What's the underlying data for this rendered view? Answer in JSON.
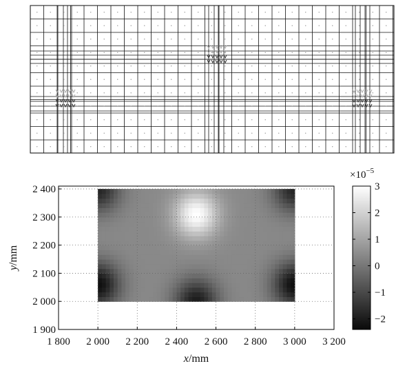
{
  "chart_data": {
    "type": "heatmap",
    "xlabel": {
      "var": "x",
      "unit": "/mm"
    },
    "ylabel": {
      "var": "y",
      "unit": "/mm"
    },
    "xlim": [
      1800,
      3200
    ],
    "ylim": [
      1900,
      2410
    ],
    "data_extent": {
      "x": [
        2000,
        3000
      ],
      "y": [
        2000,
        2400
      ]
    },
    "x_ticks": [
      "1 800",
      "2 000",
      "2 200",
      "2 400",
      "2 600",
      "2 800",
      "3 000",
      "3 200"
    ],
    "x_tick_values": [
      1800,
      2000,
      2200,
      2400,
      2600,
      2800,
      3000,
      3200
    ],
    "y_ticks": [
      "1 900",
      "2 000",
      "2 100",
      "2 200",
      "2 300",
      "2 400"
    ],
    "y_tick_values": [
      1900,
      2000,
      2100,
      2200,
      2300,
      2400
    ],
    "grid": "dotted",
    "colorbar": {
      "multiplier": "×10",
      "exponent": "−5",
      "range": [
        -2.4,
        3.0
      ],
      "ticks": [
        "3",
        "2",
        "1",
        "0",
        "−1",
        "−2"
      ],
      "tick_values": [
        3,
        2,
        1,
        0,
        -1,
        -2
      ],
      "colormap": "gray"
    },
    "field_peaks": [
      {
        "x": 2500,
        "y": 2310,
        "value": 3.0
      },
      {
        "x": 2000,
        "y": 2060,
        "value": -2.3
      },
      {
        "x": 3000,
        "y": 2060,
        "value": -2.3
      },
      {
        "x": 2500,
        "y": 2000,
        "value": -2.0
      },
      {
        "x": 2000,
        "y": 2400,
        "value": -1.8
      },
      {
        "x": 3000,
        "y": 2400,
        "value": -1.8
      }
    ]
  },
  "mesh": {
    "load_points": [
      "left",
      "center",
      "right"
    ]
  }
}
